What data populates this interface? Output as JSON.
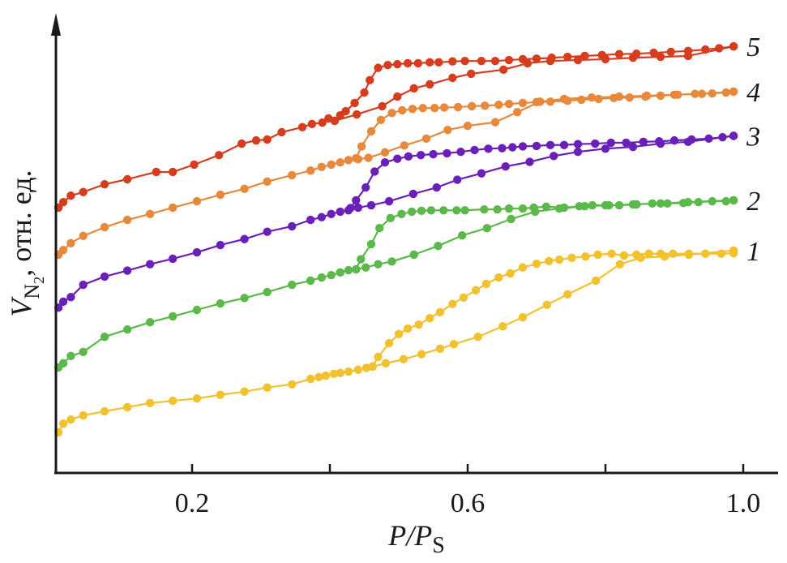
{
  "chart_data": {
    "type": "line",
    "title": "",
    "xlabel": "P/P_S",
    "xlabel_parts": {
      "main": "P/P",
      "sub": "S"
    },
    "ylabel": "V_N2, отн. ед.",
    "ylabel_parts": {
      "main": "V",
      "sub": "N",
      "subsub": "2",
      "rest": ", отн. ед."
    },
    "xlim": [
      0.0,
      1.05
    ],
    "ylim": [
      0,
      100
    ],
    "y_units": "relative (arbitrary units)",
    "x_ticks": [
      0.2,
      0.4,
      0.6,
      0.8,
      1.0
    ],
    "x_tick_labels": [
      "0.2",
      "",
      "0.6",
      "",
      "1.0"
    ],
    "grid": false,
    "legend": "inline labels at right end of each curve",
    "series": [
      {
        "name": "1",
        "label": "1",
        "color": "#f2c12e",
        "adsorption": {
          "x": [
            0.006,
            0.013,
            0.024,
            0.042,
            0.073,
            0.106,
            0.139,
            0.172,
            0.207,
            0.241,
            0.276,
            0.309,
            0.345,
            0.372,
            0.384,
            0.394,
            0.406,
            0.415,
            0.427,
            0.441,
            0.453,
            0.462,
            0.481,
            0.507,
            0.533,
            0.56,
            0.58,
            0.615,
            0.651,
            0.68,
            0.715,
            0.745,
            0.786,
            0.821,
            0.851,
            0.886,
            0.921,
            0.986
          ],
          "y": [
            8.9,
            10.8,
            11.7,
            12.6,
            13.5,
            14.4,
            15.3,
            15.8,
            16.3,
            17.1,
            17.8,
            18.7,
            19.4,
            20.6,
            21.0,
            21.3,
            21.7,
            21.9,
            22.2,
            22.6,
            23.0,
            23.3,
            24.0,
            24.9,
            26.0,
            27.2,
            28.2,
            29.8,
            32.1,
            34.1,
            36.8,
            39.1,
            42.1,
            45.7,
            47.1,
            47.4,
            47.8,
            48.7
          ]
        },
        "desorption": {
          "x": [
            0.462,
            0.47,
            0.486,
            0.5,
            0.513,
            0.529,
            0.545,
            0.56,
            0.578,
            0.594,
            0.612,
            0.627,
            0.645,
            0.662,
            0.68,
            0.7,
            0.718,
            0.733,
            0.751,
            0.771,
            0.789,
            0.809,
            0.827,
            0.845,
            0.863,
            0.88,
            0.898,
            0.921,
            0.945,
            0.968,
            0.986
          ],
          "y": [
            23.3,
            25.4,
            28.4,
            30.4,
            31.6,
            32.5,
            33.9,
            35.2,
            37.0,
            38.4,
            40.0,
            41.4,
            42.8,
            43.7,
            45.0,
            45.8,
            46.4,
            46.7,
            47.1,
            47.4,
            47.8,
            48.0,
            47.6,
            47.8,
            48.0,
            48.0,
            48.0,
            48.0,
            48.0,
            48.0,
            48.1
          ]
        }
      },
      {
        "name": "2",
        "label": "2",
        "color": "#5bb84a",
        "adsorption": {
          "x": [
            0.006,
            0.013,
            0.024,
            0.042,
            0.073,
            0.106,
            0.139,
            0.172,
            0.207,
            0.241,
            0.276,
            0.309,
            0.345,
            0.372,
            0.388,
            0.402,
            0.415,
            0.427,
            0.438,
            0.452,
            0.47,
            0.49,
            0.522,
            0.557,
            0.592,
            0.628,
            0.663,
            0.698,
            0.733,
            0.77,
            0.805,
            0.84,
            0.88,
            0.92,
            0.986
          ],
          "y": [
            23.1,
            24.0,
            25.6,
            26.5,
            29.8,
            31.4,
            33.0,
            34.3,
            35.7,
            37.1,
            38.3,
            39.6,
            41.2,
            42.1,
            42.8,
            43.3,
            43.9,
            44.4,
            44.6,
            45.0,
            45.7,
            46.3,
            47.8,
            49.7,
            52.0,
            53.6,
            55.6,
            57.2,
            57.9,
            58.4,
            58.6,
            58.8,
            59.0,
            59.3,
            59.7
          ]
        },
        "desorption": {
          "x": [
            0.438,
            0.445,
            0.46,
            0.472,
            0.488,
            0.504,
            0.519,
            0.533,
            0.547,
            0.565,
            0.584,
            0.596,
            0.624,
            0.643,
            0.66,
            0.68,
            0.696,
            0.714,
            0.74,
            0.762,
            0.781,
            0.8,
            0.82,
            0.845,
            0.868,
            0.89,
            0.913,
            0.935,
            0.955,
            0.975,
            0.986
          ],
          "y": [
            44.6,
            46.8,
            50.1,
            53.6,
            55.8,
            56.7,
            57.2,
            57.4,
            57.5,
            57.5,
            57.5,
            57.5,
            57.7,
            57.7,
            57.9,
            57.9,
            58.1,
            58.3,
            58.1,
            58.4,
            58.6,
            58.6,
            58.6,
            58.8,
            59.0,
            59.0,
            59.1,
            59.3,
            59.5,
            59.5,
            59.7
          ]
        }
      },
      {
        "name": "3",
        "label": "3",
        "color": "#6a1fb8",
        "adsorption": {
          "x": [
            0.006,
            0.013,
            0.024,
            0.042,
            0.073,
            0.106,
            0.139,
            0.172,
            0.207,
            0.241,
            0.276,
            0.309,
            0.345,
            0.372,
            0.388,
            0.402,
            0.415,
            0.427,
            0.441,
            0.46,
            0.486,
            0.521,
            0.555,
            0.585,
            0.62,
            0.655,
            0.69,
            0.725,
            0.76,
            0.8,
            0.84,
            0.88,
            0.92,
            0.986
          ],
          "y": [
            36.2,
            37.5,
            38.5,
            41.2,
            43.0,
            44.3,
            45.7,
            46.9,
            48.3,
            49.9,
            51.2,
            52.8,
            54.0,
            55.4,
            56.0,
            56.7,
            57.2,
            57.5,
            58.1,
            58.6,
            59.5,
            61.1,
            62.5,
            64.2,
            65.6,
            67.1,
            68.1,
            69.4,
            70.3,
            71.0,
            71.4,
            72.1,
            72.5,
            73.8
          ]
        },
        "desorption": {
          "x": [
            0.43,
            0.438,
            0.452,
            0.465,
            0.48,
            0.498,
            0.514,
            0.532,
            0.55,
            0.57,
            0.59,
            0.61,
            0.63,
            0.65,
            0.665,
            0.68,
            0.7,
            0.72,
            0.74,
            0.76,
            0.785,
            0.808,
            0.83,
            0.855,
            0.878,
            0.9,
            0.925,
            0.95,
            0.97,
            0.986
          ],
          "y": [
            58.0,
            59.7,
            62.5,
            66.0,
            68.0,
            68.8,
            69.3,
            69.6,
            69.8,
            70.0,
            70.3,
            70.7,
            71.0,
            71.1,
            71.3,
            71.5,
            71.6,
            71.8,
            71.8,
            72.0,
            72.1,
            72.3,
            72.3,
            72.5,
            72.6,
            72.8,
            73.0,
            73.2,
            73.5,
            73.8
          ]
        }
      },
      {
        "name": "4",
        "label": "4",
        "color": "#e8883a",
        "adsorption": {
          "x": [
            0.006,
            0.013,
            0.024,
            0.042,
            0.073,
            0.106,
            0.139,
            0.172,
            0.207,
            0.241,
            0.276,
            0.309,
            0.345,
            0.372,
            0.388,
            0.402,
            0.415,
            0.427,
            0.441,
            0.456,
            0.48,
            0.508,
            0.54,
            0.571,
            0.6,
            0.64,
            0.672,
            0.705,
            0.74,
            0.78,
            0.82,
            0.86,
            0.9,
            0.94,
            0.986
          ],
          "y": [
            47.8,
            48.8,
            50.3,
            51.9,
            53.8,
            55.4,
            56.7,
            58.1,
            59.5,
            60.9,
            62.2,
            63.8,
            65.2,
            66.2,
            67.0,
            67.5,
            68.0,
            68.5,
            68.7,
            69.0,
            70.2,
            71.7,
            73.2,
            75.1,
            76.0,
            76.8,
            79.0,
            81.3,
            81.9,
            82.2,
            82.4,
            82.6,
            82.8,
            83.0,
            83.5
          ]
        },
        "desorption": {
          "x": [
            0.438,
            0.446,
            0.46,
            0.474,
            0.49,
            0.505,
            0.52,
            0.535,
            0.552,
            0.566,
            0.586,
            0.606,
            0.625,
            0.645,
            0.66,
            0.68,
            0.7,
            0.72,
            0.745,
            0.765,
            0.79,
            0.812,
            0.835,
            0.858,
            0.88,
            0.905,
            0.93,
            0.955,
            0.975,
            0.986
          ],
          "y": [
            68.9,
            71.5,
            74.8,
            77.3,
            78.8,
            79.4,
            79.7,
            79.9,
            79.9,
            80.0,
            80.1,
            80.3,
            80.4,
            80.6,
            80.8,
            81.0,
            81.2,
            81.3,
            81.5,
            81.7,
            81.9,
            82.1,
            82.2,
            82.4,
            82.6,
            82.8,
            83.0,
            83.1,
            83.3,
            83.5
          ]
        }
      },
      {
        "name": "5",
        "label": "5",
        "color": "#d63d1f",
        "adsorption": {
          "x": [
            0.006,
            0.013,
            0.024,
            0.042,
            0.073,
            0.106,
            0.148,
            0.172,
            0.203,
            0.239,
            0.272,
            0.293,
            0.309,
            0.33,
            0.36,
            0.374,
            0.389,
            0.398,
            0.407,
            0.439,
            0.476,
            0.498,
            0.522,
            0.545,
            0.578,
            0.605,
            0.652,
            0.687,
            0.72,
            0.76,
            0.8,
            0.84,
            0.88,
            0.92,
            0.986
          ],
          "y": [
            58.1,
            59.3,
            60.7,
            61.5,
            63.2,
            64.3,
            65.9,
            65.9,
            67.5,
            69.6,
            72.1,
            72.8,
            73.0,
            74.6,
            75.7,
            76.4,
            76.7,
            77.6,
            77.1,
            78.5,
            80.3,
            82.4,
            84.2,
            85.1,
            86.5,
            87.4,
            88.3,
            89.7,
            90.2,
            90.4,
            90.6,
            90.9,
            91.1,
            91.3,
            93.4
          ]
        },
        "desorption": {
          "x": [
            0.407,
            0.415,
            0.423,
            0.436,
            0.45,
            0.458,
            0.47,
            0.484,
            0.498,
            0.513,
            0.528,
            0.545,
            0.558,
            0.578,
            0.596,
            0.62,
            0.64,
            0.66,
            0.68,
            0.7,
            0.722,
            0.745,
            0.77,
            0.795,
            0.82,
            0.845,
            0.87,
            0.895,
            0.92,
            0.945,
            0.965,
            0.986
          ],
          "y": [
            77.1,
            78.3,
            79.2,
            81.0,
            83.3,
            86.0,
            88.7,
            89.3,
            89.5,
            89.7,
            89.7,
            89.9,
            89.9,
            90.1,
            90.2,
            90.2,
            90.2,
            90.4,
            90.6,
            90.7,
            90.9,
            91.1,
            91.3,
            91.5,
            91.7,
            91.8,
            92.0,
            92.2,
            92.4,
            92.7,
            93.0,
            93.4
          ]
        }
      }
    ]
  }
}
